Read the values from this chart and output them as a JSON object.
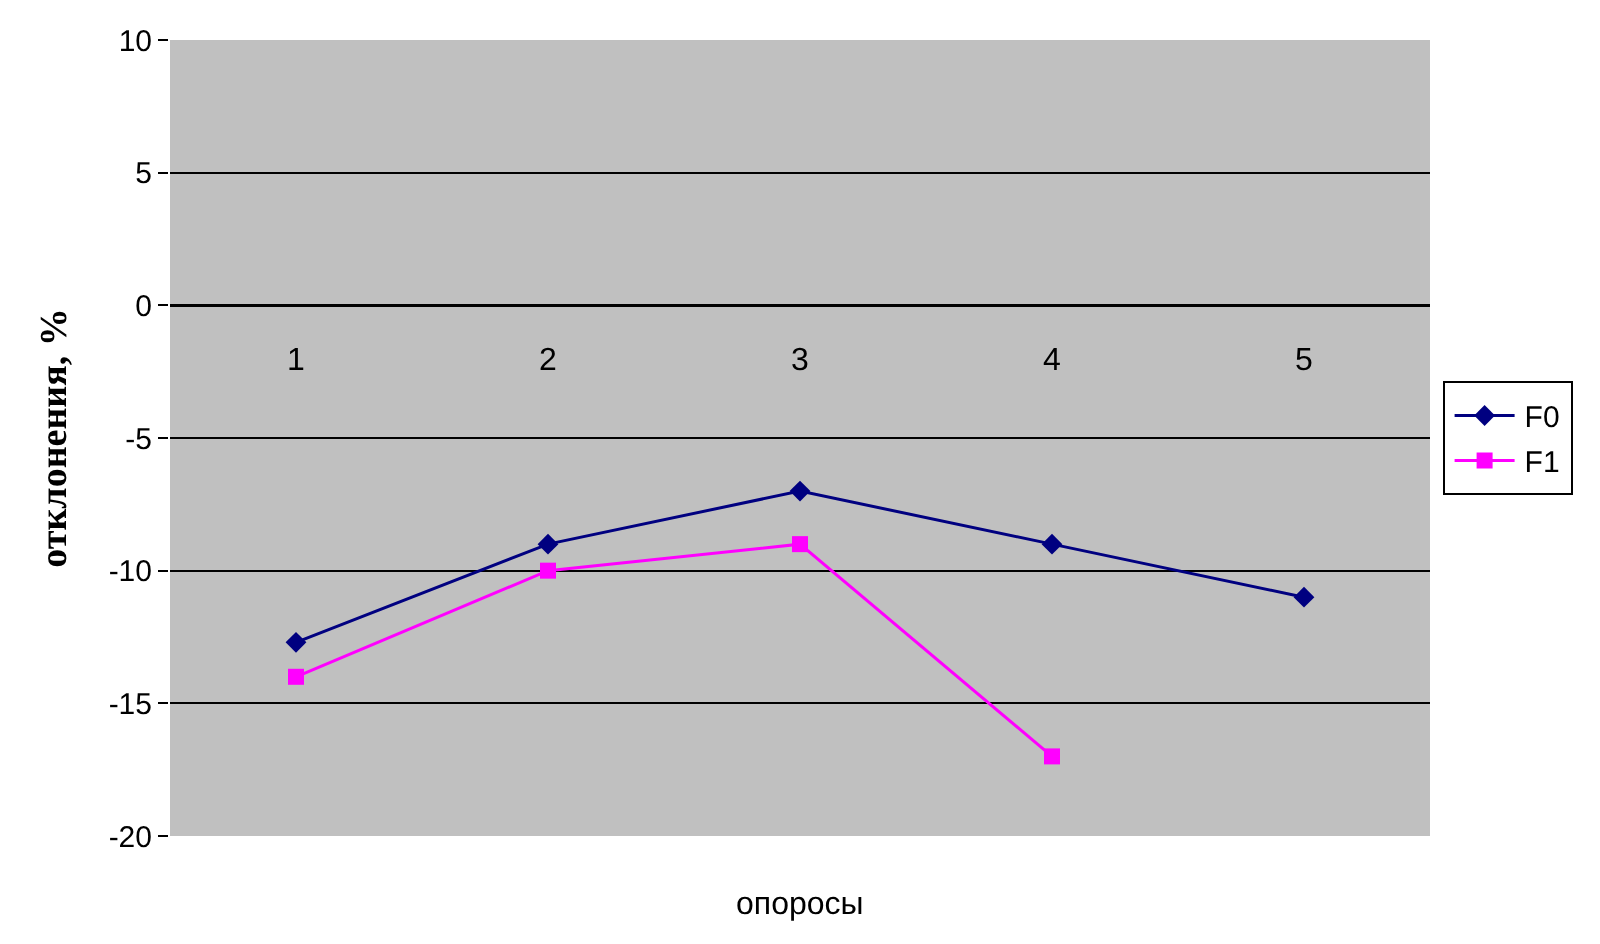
{
  "chart_data": {
    "type": "line",
    "xlabel": "опоросы",
    "ylabel": "отклонения, %",
    "categories": [
      "1",
      "2",
      "3",
      "4",
      "5"
    ],
    "series": [
      {
        "name": "F0",
        "color": "#000080",
        "marker": "diamond",
        "values": [
          -12.7,
          -9,
          -7,
          -9,
          -11
        ]
      },
      {
        "name": "F1",
        "color": "#ff00ff",
        "marker": "square",
        "values": [
          -14,
          -10,
          -9,
          -17,
          null
        ]
      }
    ],
    "ylim": [
      -20,
      10
    ],
    "yticks": [
      -20,
      -15,
      -10,
      -5,
      0,
      5,
      10
    ],
    "grid": "y",
    "legend": "right"
  }
}
